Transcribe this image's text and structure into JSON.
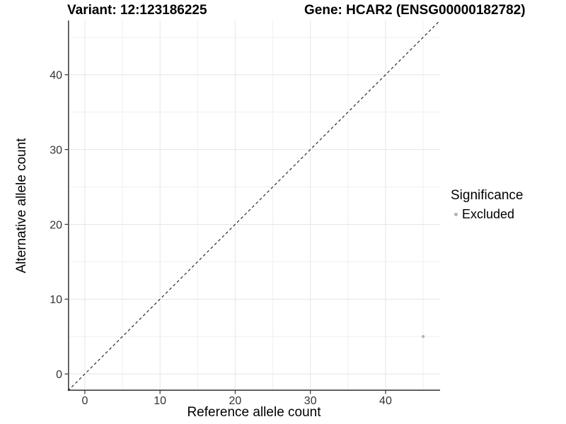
{
  "header": {
    "title_left": "Variant: 12:123186225",
    "title_right": "Gene: HCAR2 (ENSG00000182782)"
  },
  "chart_data": {
    "type": "scatter",
    "title": "Variant: 12:123186225   Gene: HCAR2 (ENSG00000182782)",
    "xlabel": "Reference allele count",
    "ylabel": "Alternative allele count",
    "xlim": [
      -2.25,
      47.25
    ],
    "ylim": [
      -2.25,
      47.25
    ],
    "x_major_ticks": [
      0,
      10,
      20,
      30,
      40
    ],
    "x_minor_ticks": [
      5,
      15,
      25,
      35,
      45
    ],
    "y_major_ticks": [
      0,
      10,
      20,
      30,
      40
    ],
    "y_minor_ticks": [
      5,
      15,
      25,
      35,
      45
    ],
    "grid": true,
    "series": [
      {
        "name": "Excluded",
        "marker": "circle",
        "marker_color": "#b2b2b2",
        "points": [
          {
            "x": 45,
            "y": 5
          }
        ]
      }
    ],
    "reference_line": {
      "type": "abline",
      "slope": 1,
      "intercept": 0,
      "line_style": "dashed",
      "color": "#1a1a1a"
    },
    "legend": {
      "title": "Significance",
      "position": "right",
      "items": [
        {
          "label": "Excluded",
          "marker_color": "#b2b2b2"
        }
      ]
    }
  },
  "style": {
    "grid_major_color": "#e5e5e5",
    "grid_minor_color": "#f0f0f0",
    "axis_line_color": "#404040",
    "tick_color": "#333333",
    "tick_label_color": "#333333",
    "background": "#ffffff"
  }
}
